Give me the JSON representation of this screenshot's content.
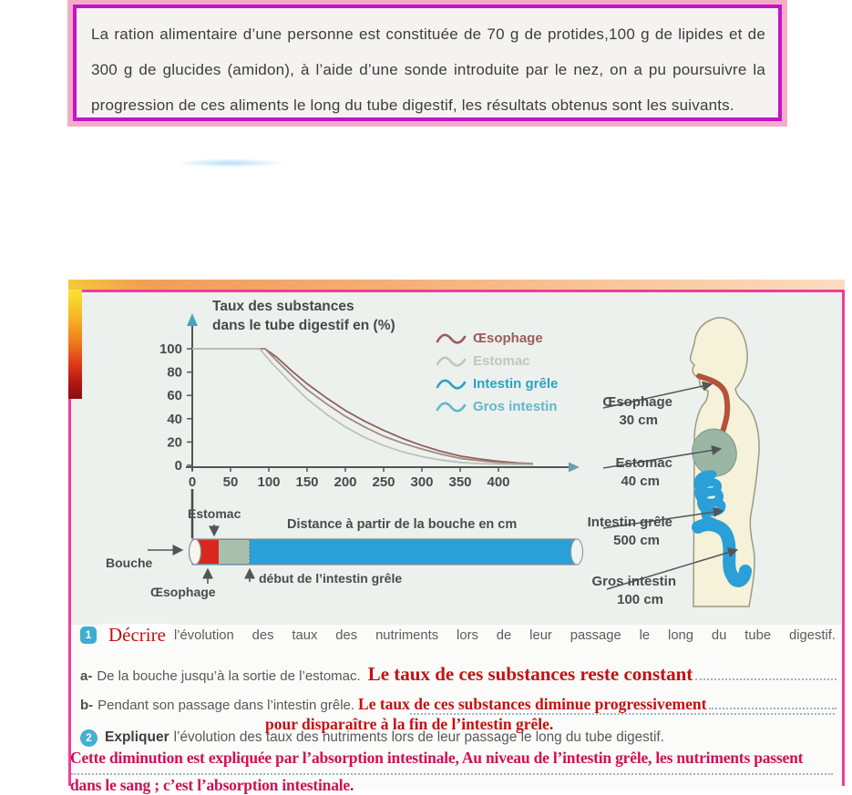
{
  "intro_box": {
    "text": "La ration alimentaire d’une personne est constituée de 70 g de protides,100 g de lipides et de 300 g de glucides (amidon), à l’aide d’une sonde introduite par le nez, on a pu poursuivre la progression de ces aliments le long du tube digestif, les résultats obtenus sont les suivants."
  },
  "chart_data": {
    "type": "line",
    "title": "Taux des substances dans le tube digestif en (%)",
    "title_line1": "Taux des substances",
    "title_line2": "dans le tube digestif en (%)",
    "xlabel": "Distance à partir de la bouche en cm",
    "ylabel": "Taux des substances dans le tube digestif en (%)",
    "xlim": [
      0,
      450
    ],
    "ylim": [
      0,
      100
    ],
    "x_ticks": [
      0,
      50,
      100,
      150,
      200,
      250,
      300,
      350,
      400
    ],
    "y_ticks": [
      0,
      20,
      40,
      60,
      80,
      100
    ],
    "grid": false,
    "legend_position": "upper right",
    "legend": [
      {
        "name": "Œsophage",
        "color": "#9b5e5c"
      },
      {
        "name": "Estomac",
        "color": "#c2c7bd"
      },
      {
        "name": "Intestin grêle",
        "color": "#2ba3c0"
      },
      {
        "name": "Gros intestin",
        "color": "#62b7c9"
      }
    ],
    "series": [
      {
        "name": "substance-curve-1",
        "color": "#8f5f5e",
        "x": [
          0,
          95,
          110,
          130,
          150,
          175,
          200,
          225,
          250,
          275,
          300,
          325,
          350,
          375,
          400,
          425,
          445
        ],
        "values": [
          100,
          100,
          93,
          81,
          70,
          58,
          47,
          38,
          30,
          23,
          17,
          12,
          8,
          5.5,
          3.5,
          2,
          1.5
        ]
      },
      {
        "name": "substance-curve-2",
        "color": "#a3887b",
        "x": [
          0,
          95,
          110,
          130,
          150,
          175,
          200,
          225,
          250,
          275,
          300,
          325,
          350,
          375,
          400,
          425,
          445
        ],
        "values": [
          100,
          100,
          90,
          77,
          65,
          53,
          42,
          33,
          25,
          19,
          14,
          9.5,
          6,
          4,
          2.5,
          1.5,
          1
        ]
      },
      {
        "name": "substance-curve-3",
        "color": "#bcc1b7",
        "x": [
          0,
          88,
          105,
          130,
          150,
          175,
          200,
          225,
          250,
          275,
          300,
          325,
          350,
          375,
          400,
          425,
          445
        ],
        "values": [
          100,
          100,
          87,
          70,
          57,
          44,
          33,
          24,
          17,
          11.5,
          7.5,
          4.5,
          2.5,
          1.5,
          1,
          0.7,
          0.5
        ]
      }
    ]
  },
  "tube_diagram": {
    "bouche": "Bouche",
    "oesophage": "Œsophage",
    "estomac": "Estomac",
    "debut_intestin": "début de l’intestin grêle",
    "colors": {
      "oesophage": "#d8281e",
      "estomac": "#a9bfae",
      "intestin": "#29a0d8"
    }
  },
  "body_diagram": {
    "labels": [
      {
        "name": "Œsophage",
        "length": "30 cm"
      },
      {
        "name": "Estomac",
        "length": "40 cm"
      },
      {
        "name": "Intestin grêle",
        "length": "500 cm"
      },
      {
        "name": "Gros intestin",
        "length": "100 cm"
      }
    ]
  },
  "questions": {
    "q1": {
      "num": "1",
      "verb": "Décrire",
      "text": "l’évolution des taux des nutriments lors de leur passage le long du tube digestif."
    },
    "a": {
      "prefix": "a-",
      "text": "De la bouche jusqu’à la sortie de l’estomac.",
      "answer": "Le taux de ces substances reste constant"
    },
    "b": {
      "prefix": "b-",
      "text": "Pendant son passage dans l’intestin grêle.",
      "answer_line1": "Le taux de ces substances diminue progressivement",
      "answer_line2": "pour disparaître à la fin de l’intestin grêle."
    },
    "q2": {
      "num": "2",
      "verb": "Expliquer",
      "text": "l’évolution des taux des nutriments lors de leur passage le long du tube digestif."
    },
    "final_answer_line1": "Cette diminution est expliquée par l’absorption intestinale, Au niveau de l’intestin grêle, les nutriments passent",
    "final_answer_line2": "dans le sang ; c’est l’absorption intestinale."
  }
}
